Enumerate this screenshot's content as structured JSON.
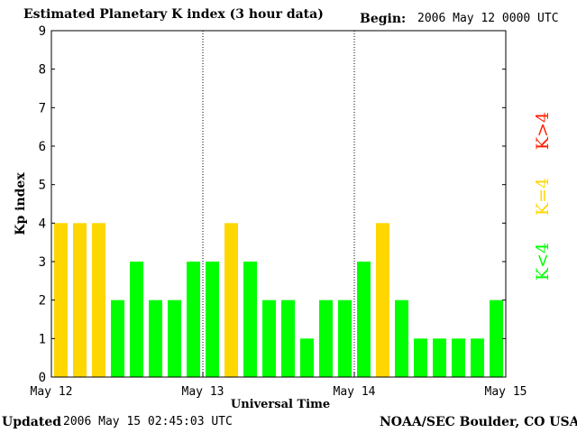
{
  "header": {
    "title": "Estimated Planetary K index (3 hour data)",
    "begin_label": "Begin:",
    "begin_value": "2006 May 12 0000 UTC"
  },
  "footer": {
    "updated_label": "Updated",
    "updated_value": "2006 May 15 02:45:03 UTC",
    "credit": "NOAA/SEC Boulder, CO USA"
  },
  "chart_data": {
    "type": "bar",
    "xlabel": "Universal Time",
    "ylabel": "Kp index",
    "ylim": [
      0,
      9
    ],
    "yticks": [
      "0",
      "1",
      "2",
      "3",
      "4",
      "5",
      "6",
      "7",
      "8",
      "9"
    ],
    "x_tick_labels": [
      "May 12",
      "May 13",
      "May 14",
      "May 15"
    ],
    "day_separators": [
      "May 13",
      "May 14"
    ],
    "values": [
      4,
      4,
      4,
      2,
      3,
      2,
      2,
      3,
      3,
      4,
      3,
      2,
      2,
      1,
      2,
      2,
      3,
      4,
      2,
      1,
      1,
      1,
      1,
      2
    ],
    "colors": {
      "below_4": "#00ff00",
      "equal_4": "#ffd700",
      "above_4": "#ff2000"
    },
    "legend": [
      {
        "label": "K<4",
        "color": "#00ff00"
      },
      {
        "label": "K=4",
        "color": "#ffd700"
      },
      {
        "label": "K>4",
        "color": "#ff2000"
      }
    ]
  }
}
